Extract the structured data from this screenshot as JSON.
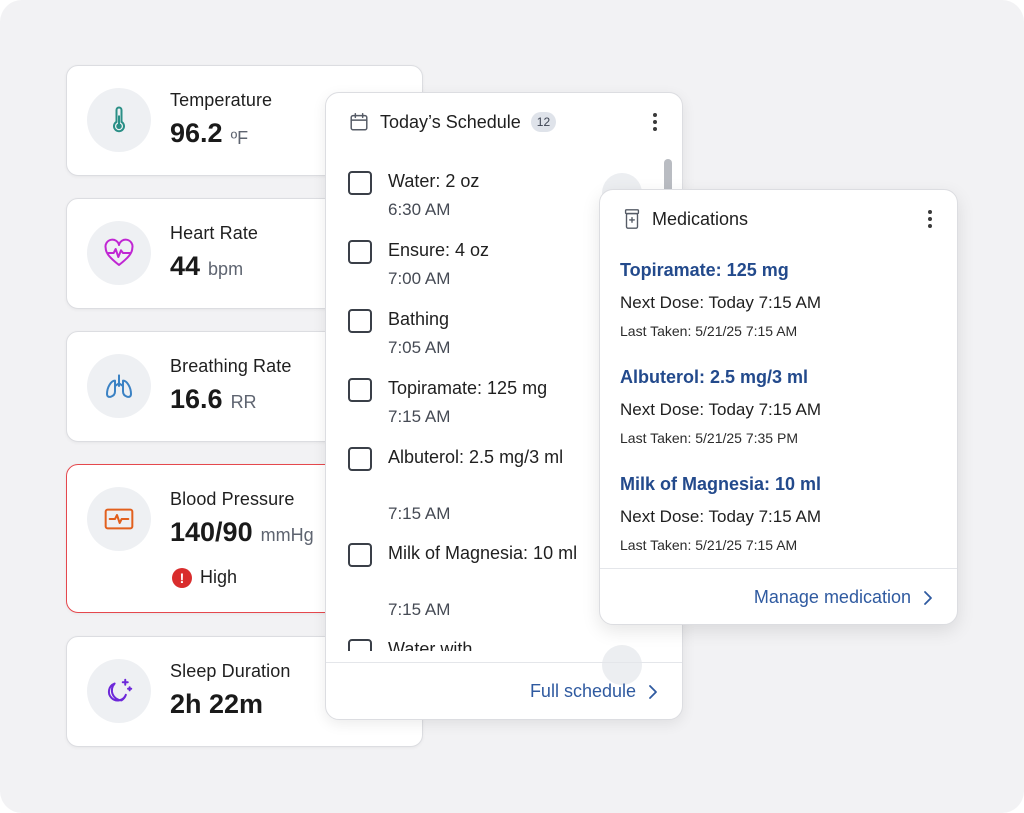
{
  "vitals": [
    {
      "label": "Temperature",
      "value": "96.2",
      "unit": "ºF",
      "icon": "thermometer-icon"
    },
    {
      "label": "Heart Rate",
      "value": "44",
      "unit": "bpm",
      "icon": "heart-rate-icon"
    },
    {
      "label": "Breathing Rate",
      "value": "16.6",
      "unit": "RR",
      "icon": "lungs-icon"
    },
    {
      "label": "Blood Pressure",
      "value": "140/90",
      "unit": "mmHg",
      "icon": "blood-pressure-monitor-icon",
      "status": "High",
      "status_icon": "alert-icon"
    },
    {
      "label": "Sleep Duration",
      "value": "2h 22m",
      "unit": "",
      "icon": "moon-stars-icon"
    }
  ],
  "schedule": {
    "title": "Today’s Schedule",
    "count": "12",
    "items": [
      {
        "name": "Water: 2 oz",
        "time": "6:30 AM"
      },
      {
        "name": "Ensure: 4 oz",
        "time": "7:00 AM"
      },
      {
        "name": "Bathing",
        "time": "7:05 AM"
      },
      {
        "name": "Topiramate: 125 mg",
        "time": "7:15 AM"
      },
      {
        "name": "Albuterol: 2.5 mg/3 ml",
        "time": "7:15 AM"
      },
      {
        "name": "Milk of Magnesia: 10 ml",
        "time": "7:15 AM"
      },
      {
        "name": "Water with",
        "time": ""
      }
    ],
    "footer_link": "Full schedule"
  },
  "medications": {
    "title": "Medications",
    "next_label": "Next Dose:",
    "last_label": "Last Taken:",
    "items": [
      {
        "name": "Topiramate: 125 mg",
        "next": "Today 7:15 AM",
        "last": "5/21/25 7:15 AM"
      },
      {
        "name": "Albuterol: 2.5 mg/3 ml",
        "next": "Today 7:15 AM",
        "last": "5/21/25 7:35 PM"
      },
      {
        "name": "Milk of Magnesia: 10 ml",
        "next": "Today 7:15 AM",
        "last": "5/21/25 7:15 AM"
      }
    ],
    "footer_link": "Manage medication"
  },
  "colors": {
    "link": "#2f5aa0",
    "med_name": "#234a8c",
    "alert": "#d92d2d",
    "temperature_icon": "#2a8f86",
    "heart_icon": "#c026d3",
    "lungs_icon": "#3b82c4",
    "bp_icon": "#e2601e",
    "moon_icon": "#6d28d9"
  }
}
